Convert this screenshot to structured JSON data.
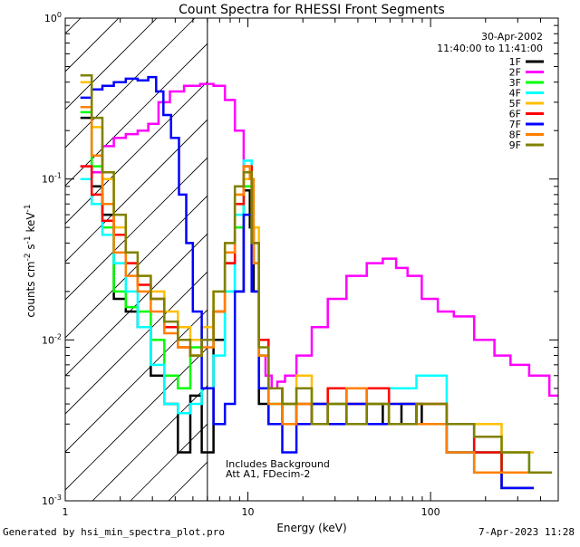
{
  "chart_data": {
    "type": "line",
    "title": "Count Spectra for RHESSI Front Segments",
    "xlabel": "Energy (keV)",
    "ylabel": "counts cm^-2 s^-1 keV^-1",
    "xscale": "log",
    "yscale": "log",
    "xlim": [
      1,
      500
    ],
    "ylim": [
      0.001,
      1
    ],
    "x_ticks": [
      {
        "value": 1,
        "label": "1"
      },
      {
        "value": 10,
        "label": "10"
      },
      {
        "value": 100,
        "label": "100"
      }
    ],
    "y_ticks": [
      {
        "value": 0.001,
        "base": "10",
        "exp": "-3"
      },
      {
        "value": 0.01,
        "base": "10",
        "exp": "-2"
      },
      {
        "value": 0.1,
        "base": "10",
        "exp": "-1"
      },
      {
        "value": 1,
        "base": "10",
        "exp": "0"
      }
    ],
    "threshold_energy": 6,
    "date": "30-Apr-2002",
    "time_range": "11:40:00 to 11:41:00",
    "annotation_lines": [
      "Includes Background",
      "Att A1, FDecim-2"
    ],
    "series": [
      {
        "name": "1F",
        "color": "#000000",
        "x": [
          1.3,
          1.5,
          1.7,
          2.0,
          2.3,
          2.7,
          3.2,
          3.8,
          4.5,
          5.2,
          6.0,
          7.0,
          8.0,
          9.0,
          10.0,
          10.5,
          11.0,
          12.0,
          14.0,
          17.0,
          20.0,
          25.0,
          30.0,
          40.0,
          50.0,
          60.0,
          80.0,
          100.0,
          150.0,
          200.0,
          300.0
        ],
        "y": [
          0.24,
          0.09,
          0.06,
          0.018,
          0.015,
          0.012,
          0.006,
          0.004,
          0.002,
          0.0045,
          0.002,
          0.01,
          0.03,
          0.02,
          0.085,
          0.05,
          0.02,
          0.004,
          0.003,
          0.004,
          0.003,
          0.004,
          0.003,
          0.005,
          0.004,
          0.003,
          0.004,
          0.003,
          0.003,
          0.002,
          0.0012
        ]
      },
      {
        "name": "2F",
        "color": "#ff00ff",
        "x": [
          1.3,
          1.5,
          1.7,
          2.0,
          2.3,
          2.7,
          3.0,
          3.5,
          4.0,
          5.0,
          6.0,
          7.0,
          8.0,
          9.0,
          10.0,
          11.0,
          12.0,
          13.0,
          14.0,
          15.0,
          17.0,
          20.0,
          25.0,
          30.0,
          40.0,
          50.0,
          60.0,
          70.0,
          80.0,
          100.0,
          120.0,
          150.0,
          200.0,
          250.0,
          300.0,
          400.0,
          500.0
        ],
        "y": [
          0.12,
          0.11,
          0.16,
          0.18,
          0.19,
          0.2,
          0.22,
          0.3,
          0.35,
          0.38,
          0.39,
          0.38,
          0.31,
          0.2,
          0.12,
          0.03,
          0.008,
          0.006,
          0.005,
          0.0055,
          0.006,
          0.008,
          0.012,
          0.018,
          0.025,
          0.03,
          0.032,
          0.028,
          0.025,
          0.018,
          0.015,
          0.014,
          0.01,
          0.008,
          0.007,
          0.006,
          0.0045
        ]
      },
      {
        "name": "3F",
        "color": "#00ff00",
        "x": [
          1.3,
          1.5,
          1.7,
          2.0,
          2.3,
          2.7,
          3.2,
          3.8,
          4.5,
          5.2,
          6.0,
          7.0,
          8.0,
          9.0,
          10.0,
          11.0,
          12.0,
          14.0,
          17.0,
          20.0,
          25.0,
          30.0,
          40.0,
          50.0,
          70.0,
          100.0,
          150.0,
          200.0,
          300.0
        ],
        "y": [
          0.26,
          0.12,
          0.05,
          0.02,
          0.016,
          0.015,
          0.01,
          0.006,
          0.005,
          0.009,
          0.012,
          0.015,
          0.02,
          0.05,
          0.09,
          0.03,
          0.008,
          0.004,
          0.003,
          0.005,
          0.003,
          0.004,
          0.003,
          0.004,
          0.003,
          0.003,
          0.002,
          0.002,
          0.0015
        ]
      },
      {
        "name": "4F",
        "color": "#00ffff",
        "x": [
          1.3,
          1.5,
          1.7,
          2.0,
          2.3,
          2.7,
          3.2,
          3.8,
          4.5,
          5.2,
          6.0,
          7.0,
          8.0,
          9.0,
          10.0,
          11.0,
          12.0,
          14.0,
          17.0,
          20.0,
          25.0,
          30.0,
          40.0,
          50.0,
          70.0,
          100.0,
          150.0,
          200.0,
          300.0,
          400.0
        ],
        "y": [
          0.1,
          0.07,
          0.045,
          0.03,
          0.02,
          0.012,
          0.007,
          0.004,
          0.0035,
          0.004,
          0.005,
          0.008,
          0.02,
          0.06,
          0.13,
          0.04,
          0.01,
          0.005,
          0.003,
          0.004,
          0.003,
          0.004,
          0.005,
          0.004,
          0.005,
          0.006,
          0.003,
          0.002,
          0.002,
          0.0015
        ]
      },
      {
        "name": "5F",
        "color": "#ffbf00",
        "x": [
          1.3,
          1.5,
          1.7,
          2.0,
          2.3,
          2.7,
          3.2,
          3.8,
          4.5,
          5.2,
          6.0,
          7.0,
          8.0,
          9.0,
          10.0,
          11.0,
          12.0,
          14.0,
          17.0,
          20.0,
          25.0,
          30.0,
          40.0,
          50.0,
          70.0,
          100.0,
          150.0,
          200.0,
          300.0
        ],
        "y": [
          0.4,
          0.21,
          0.1,
          0.05,
          0.03,
          0.025,
          0.02,
          0.015,
          0.012,
          0.01,
          0.012,
          0.02,
          0.04,
          0.08,
          0.1,
          0.05,
          0.01,
          0.005,
          0.004,
          0.006,
          0.004,
          0.005,
          0.004,
          0.005,
          0.004,
          0.004,
          0.003,
          0.003,
          0.002
        ]
      },
      {
        "name": "6F",
        "color": "#ff0000",
        "x": [
          1.3,
          1.5,
          1.7,
          2.0,
          2.3,
          2.7,
          3.2,
          3.8,
          4.5,
          5.2,
          6.0,
          7.0,
          8.0,
          9.0,
          10.0,
          11.0,
          12.0,
          14.0,
          17.0,
          20.0,
          25.0,
          30.0,
          40.0,
          50.0,
          70.0,
          100.0,
          150.0,
          200.0,
          300.0
        ],
        "y": [
          0.12,
          0.08,
          0.055,
          0.045,
          0.03,
          0.022,
          0.018,
          0.012,
          0.009,
          0.008,
          0.01,
          0.015,
          0.03,
          0.07,
          0.12,
          0.04,
          0.01,
          0.005,
          0.003,
          0.004,
          0.003,
          0.005,
          0.004,
          0.005,
          0.003,
          0.004,
          0.003,
          0.002,
          0.0015
        ]
      },
      {
        "name": "7F",
        "color": "#0000ff",
        "x": [
          1.3,
          1.5,
          1.7,
          2.0,
          2.3,
          2.7,
          3.0,
          3.3,
          3.6,
          4.0,
          4.4,
          4.8,
          5.2,
          6.0,
          7.0,
          8.0,
          9.0,
          10.0,
          11.0,
          12.0,
          14.0,
          17.0,
          20.0,
          25.0,
          30.0,
          40.0,
          50.0,
          70.0,
          100.0,
          150.0,
          200.0,
          300.0
        ],
        "y": [
          0.32,
          0.36,
          0.38,
          0.4,
          0.42,
          0.41,
          0.43,
          0.35,
          0.25,
          0.18,
          0.08,
          0.04,
          0.015,
          0.005,
          0.003,
          0.004,
          0.02,
          0.06,
          0.02,
          0.005,
          0.003,
          0.002,
          0.003,
          0.004,
          0.003,
          0.004,
          0.003,
          0.004,
          0.003,
          0.002,
          0.0015,
          0.0012
        ]
      },
      {
        "name": "8F",
        "color": "#ff8000",
        "x": [
          1.3,
          1.5,
          1.7,
          2.0,
          2.3,
          2.7,
          3.2,
          3.8,
          4.5,
          5.2,
          6.0,
          7.0,
          8.0,
          9.0,
          10.0,
          10.5,
          11.0,
          12.0,
          14.0,
          17.0,
          20.0,
          25.0,
          30.0,
          40.0,
          50.0,
          70.0,
          100.0,
          150.0,
          200.0,
          300.0
        ],
        "y": [
          0.28,
          0.14,
          0.07,
          0.035,
          0.025,
          0.02,
          0.015,
          0.011,
          0.009,
          0.008,
          0.009,
          0.015,
          0.035,
          0.08,
          0.12,
          0.1,
          0.03,
          0.008,
          0.004,
          0.003,
          0.004,
          0.003,
          0.004,
          0.005,
          0.004,
          0.003,
          0.003,
          0.002,
          0.0015,
          0.0015
        ]
      },
      {
        "name": "9F",
        "color": "#808000",
        "x": [
          1.3,
          1.5,
          1.7,
          2.0,
          2.3,
          2.7,
          3.2,
          3.8,
          4.5,
          5.2,
          6.0,
          7.0,
          8.0,
          9.0,
          10.0,
          11.0,
          12.0,
          14.0,
          17.0,
          20.0,
          25.0,
          30.0,
          40.0,
          50.0,
          70.0,
          100.0,
          150.0,
          200.0,
          300.0,
          400.0
        ],
        "y": [
          0.44,
          0.24,
          0.11,
          0.06,
          0.035,
          0.025,
          0.018,
          0.013,
          0.01,
          0.008,
          0.01,
          0.02,
          0.04,
          0.09,
          0.11,
          0.04,
          0.009,
          0.005,
          0.004,
          0.005,
          0.003,
          0.004,
          0.003,
          0.004,
          0.003,
          0.004,
          0.003,
          0.0025,
          0.002,
          0.0015
        ]
      }
    ]
  },
  "footer": {
    "generated_by": "Generated by hsi_min_spectra_plot.pro",
    "render_date": "7-Apr-2023 11:28"
  }
}
